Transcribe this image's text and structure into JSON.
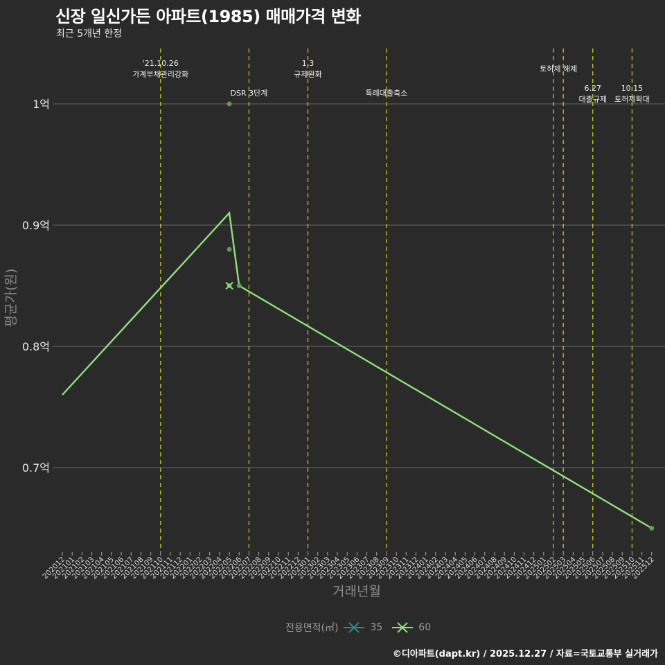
{
  "title": "신장 일신가든 아파트(1985) 매매가격 변화",
  "subtitle": "최근 5개년 한정",
  "caption": "©디아파트(dapt.kr) / 2025.12.27 / 자료=국토교통부 실거래가",
  "colors": {
    "background": "#2a2a2b",
    "grid": "#5a5a5a",
    "event_line": "#d4d40a",
    "series_35": "#2a8c8a",
    "series_60": "#8fe07a",
    "point_60": "#6a9e5a"
  },
  "legend": {
    "title": "전용면적(㎡)",
    "items": [
      {
        "label": "35",
        "color": "#2a8c8a"
      },
      {
        "label": "60",
        "color": "#8fe07a"
      }
    ]
  },
  "chart_data": {
    "type": "line",
    "title": "신장 일신가든 아파트(1985) 매매가격 변화",
    "subtitle": "최근 5개년 한정",
    "xlabel": "거래년월",
    "ylabel": "평균가(원)",
    "ylim": [
      0.63,
      1.05
    ],
    "yticks": [
      "0.7억",
      "0.8억",
      "0.9억",
      "1억"
    ],
    "ytick_values": [
      0.7,
      0.8,
      0.9,
      1.0
    ],
    "grid": true,
    "legend_position": "bottom",
    "categories": [
      "202012",
      "202101",
      "202102",
      "202103",
      "202104",
      "202105",
      "202106",
      "202107",
      "202108",
      "202109",
      "202110",
      "202111",
      "202112",
      "202201",
      "202202",
      "202203",
      "202204",
      "202205",
      "202206",
      "202207",
      "202208",
      "202209",
      "202210",
      "202211",
      "202212",
      "202301",
      "202302",
      "202303",
      "202304",
      "202305",
      "202306",
      "202307",
      "202308",
      "202309",
      "202310",
      "202311",
      "202312",
      "202401",
      "202402",
      "202403",
      "202404",
      "202405",
      "202406",
      "202407",
      "202408",
      "202409",
      "202410",
      "202411",
      "202412",
      "202501",
      "202502",
      "202503",
      "202504",
      "202505",
      "202506",
      "202507",
      "202508",
      "202509",
      "202510",
      "202511",
      "202512"
    ],
    "series": [
      {
        "name": "60",
        "line": [
          {
            "x": "202012",
            "y": 0.76
          },
          {
            "x": "202205",
            "y": 0.91
          },
          {
            "x": "202206",
            "y": 0.85
          },
          {
            "x": "202512",
            "y": 0.65
          }
        ],
        "points": [
          {
            "x": "202205",
            "y": 1.0
          },
          {
            "x": "202205",
            "y": 0.88
          },
          {
            "x": "202205",
            "y": 0.85
          },
          {
            "x": "202206",
            "y": 0.85
          },
          {
            "x": "202512",
            "y": 0.65
          }
        ]
      },
      {
        "name": "35",
        "line": [],
        "points": [
          {
            "x": "202205",
            "y": 0.85
          }
        ]
      }
    ],
    "annotations": [
      {
        "x": "202110",
        "lines": [
          "'21.10.26",
          "가계부채관리강화"
        ],
        "row": 1
      },
      {
        "x": "202207",
        "lines": [
          "DSR 3단계"
        ],
        "row": 3
      },
      {
        "x": "202301",
        "lines": [
          "1.3",
          "규제완화"
        ],
        "row": 1
      },
      {
        "x": "202309",
        "lines": [
          "특례대출축소"
        ],
        "row": 3
      },
      {
        "x": "202502",
        "lines": [],
        "row": 0
      },
      {
        "x": "202503",
        "lines": [
          "토허제 해제"
        ],
        "row": 2
      },
      {
        "x": "202506",
        "lines": [
          "6.27",
          "대출규제"
        ],
        "row": 4
      },
      {
        "x": "202510",
        "lines": [
          "10.15",
          "토허제확대"
        ],
        "row": 4
      }
    ]
  }
}
